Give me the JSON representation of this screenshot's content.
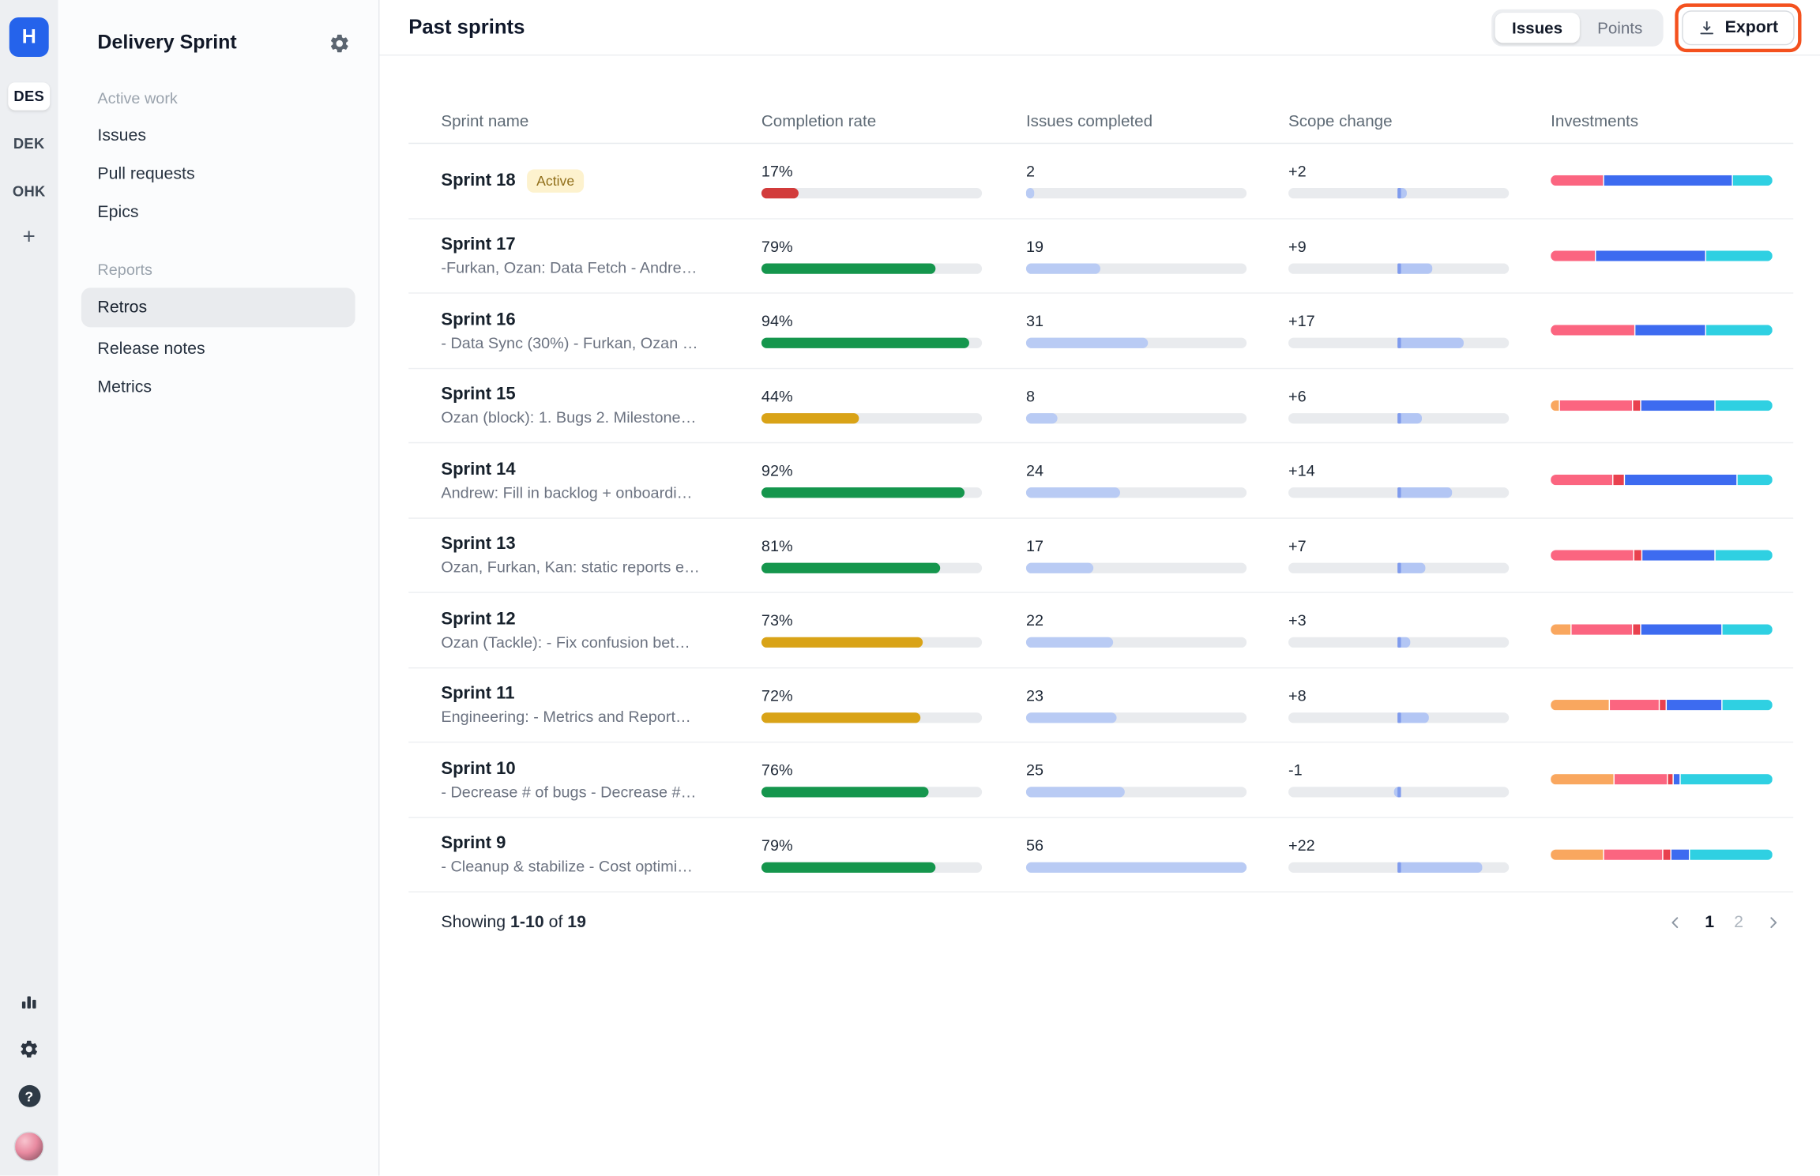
{
  "rail": {
    "logo": "H",
    "workspaces": [
      {
        "label": "DES",
        "active": true
      },
      {
        "label": "DEK",
        "active": false
      },
      {
        "label": "OHK",
        "active": false
      }
    ],
    "add_label": "+",
    "help_label": "?"
  },
  "sidebar": {
    "title": "Delivery Sprint",
    "sections": [
      {
        "label": "Active work",
        "items": [
          {
            "label": "Issues",
            "active": false
          },
          {
            "label": "Pull requests",
            "active": false
          },
          {
            "label": "Epics",
            "active": false
          }
        ]
      },
      {
        "label": "Reports",
        "items": [
          {
            "label": "Retros",
            "active": true
          },
          {
            "label": "Release notes",
            "active": false
          },
          {
            "label": "Metrics",
            "active": false
          }
        ]
      }
    ]
  },
  "header": {
    "title": "Past sprints",
    "toggle": {
      "options": [
        "Issues",
        "Points"
      ],
      "selected": "Issues"
    },
    "export_label": "Export",
    "highlight_color": "#f4511e"
  },
  "table": {
    "columns": [
      "Sprint name",
      "Completion rate",
      "Issues completed",
      "Scope change",
      "Investments"
    ],
    "issues_max": 56,
    "scope_max": 22,
    "completion_colors": {
      "green": "#15964d",
      "amber": "#d9a317",
      "red": "#d23b3b"
    },
    "bar_colors": {
      "track": "#e9ebee",
      "issues": "#b9cbf4",
      "scope": "#b3c6f4",
      "scope_marker": "#7f9bed"
    },
    "palette": {
      "orange": "#f9a75f",
      "pink": "#fb6580",
      "red": "#e9414e",
      "blue": "#3d6bf0",
      "cyan": "#2fd0e2"
    },
    "rows": [
      {
        "name": "Sprint 18",
        "badge": "Active",
        "subtitle": "",
        "completion": 17,
        "level": "red",
        "issues": 2,
        "scope": 2,
        "investments": [
          {
            "c": "pink",
            "v": 24
          },
          {
            "c": "blue",
            "v": 58
          },
          {
            "c": "cyan",
            "v": 18
          }
        ]
      },
      {
        "name": "Sprint 17",
        "badge": "",
        "subtitle": "-Furkan, Ozan: Data Fetch - Andre…",
        "completion": 79,
        "level": "green",
        "issues": 19,
        "scope": 9,
        "investments": [
          {
            "c": "pink",
            "v": 20
          },
          {
            "c": "blue",
            "v": 50
          },
          {
            "c": "cyan",
            "v": 30
          }
        ]
      },
      {
        "name": "Sprint 16",
        "badge": "",
        "subtitle": "- Data Sync (30%) - Furkan, Ozan …",
        "completion": 94,
        "level": "green",
        "issues": 31,
        "scope": 17,
        "investments": [
          {
            "c": "pink",
            "v": 38
          },
          {
            "c": "blue",
            "v": 32
          },
          {
            "c": "cyan",
            "v": 30
          }
        ]
      },
      {
        "name": "Sprint 15",
        "badge": "",
        "subtitle": "Ozan (block): 1. Bugs 2. Milestone…",
        "completion": 44,
        "level": "amber",
        "issues": 8,
        "scope": 6,
        "investments": [
          {
            "c": "orange",
            "v": 4
          },
          {
            "c": "pink",
            "v": 33
          },
          {
            "c": "red",
            "v": 3
          },
          {
            "c": "blue",
            "v": 34
          },
          {
            "c": "cyan",
            "v": 26
          }
        ]
      },
      {
        "name": "Sprint 14",
        "badge": "",
        "subtitle": "Andrew: Fill in backlog + onboardi…",
        "completion": 92,
        "level": "green",
        "issues": 24,
        "scope": 14,
        "investments": [
          {
            "c": "pink",
            "v": 28
          },
          {
            "c": "red",
            "v": 5
          },
          {
            "c": "blue",
            "v": 51
          },
          {
            "c": "cyan",
            "v": 16
          }
        ]
      },
      {
        "name": "Sprint 13",
        "badge": "",
        "subtitle": "Ozan, Furkan, Kan: static reports e…",
        "completion": 81,
        "level": "green",
        "issues": 17,
        "scope": 7,
        "investments": [
          {
            "c": "pink",
            "v": 38
          },
          {
            "c": "red",
            "v": 3
          },
          {
            "c": "blue",
            "v": 33
          },
          {
            "c": "cyan",
            "v": 26
          }
        ]
      },
      {
        "name": "Sprint 12",
        "badge": "",
        "subtitle": "Ozan (Tackle): - Fix confusion bet…",
        "completion": 73,
        "level": "amber",
        "issues": 22,
        "scope": 3,
        "investments": [
          {
            "c": "orange",
            "v": 9
          },
          {
            "c": "pink",
            "v": 28
          },
          {
            "c": "red",
            "v": 3
          },
          {
            "c": "blue",
            "v": 37
          },
          {
            "c": "cyan",
            "v": 23
          }
        ]
      },
      {
        "name": "Sprint 11",
        "badge": "",
        "subtitle": "Engineering: - Metrics and Report…",
        "completion": 72,
        "level": "amber",
        "issues": 23,
        "scope": 8,
        "investments": [
          {
            "c": "orange",
            "v": 27
          },
          {
            "c": "pink",
            "v": 22
          },
          {
            "c": "red",
            "v": 3
          },
          {
            "c": "blue",
            "v": 25
          },
          {
            "c": "cyan",
            "v": 23
          }
        ]
      },
      {
        "name": "Sprint 10",
        "badge": "",
        "subtitle": "- Decrease # of bugs - Decrease #…",
        "completion": 76,
        "level": "green",
        "issues": 25,
        "scope": -1,
        "investments": [
          {
            "c": "orange",
            "v": 29
          },
          {
            "c": "pink",
            "v": 24
          },
          {
            "c": "red",
            "v": 2
          },
          {
            "c": "blue",
            "v": 3
          },
          {
            "c": "cyan",
            "v": 42
          }
        ]
      },
      {
        "name": "Sprint 9",
        "badge": "",
        "subtitle": "- Cleanup & stabilize - Cost optimi…",
        "completion": 79,
        "level": "green",
        "issues": 56,
        "scope": 22,
        "investments": [
          {
            "c": "orange",
            "v": 24
          },
          {
            "c": "pink",
            "v": 27
          },
          {
            "c": "red",
            "v": 3
          },
          {
            "c": "blue",
            "v": 8
          },
          {
            "c": "cyan",
            "v": 38
          }
        ]
      }
    ]
  },
  "footer": {
    "showing_label": "Showing",
    "range": "1-10",
    "of_label": "of",
    "total": "19",
    "current_page": "1",
    "pages": [
      "1",
      "2"
    ]
  }
}
